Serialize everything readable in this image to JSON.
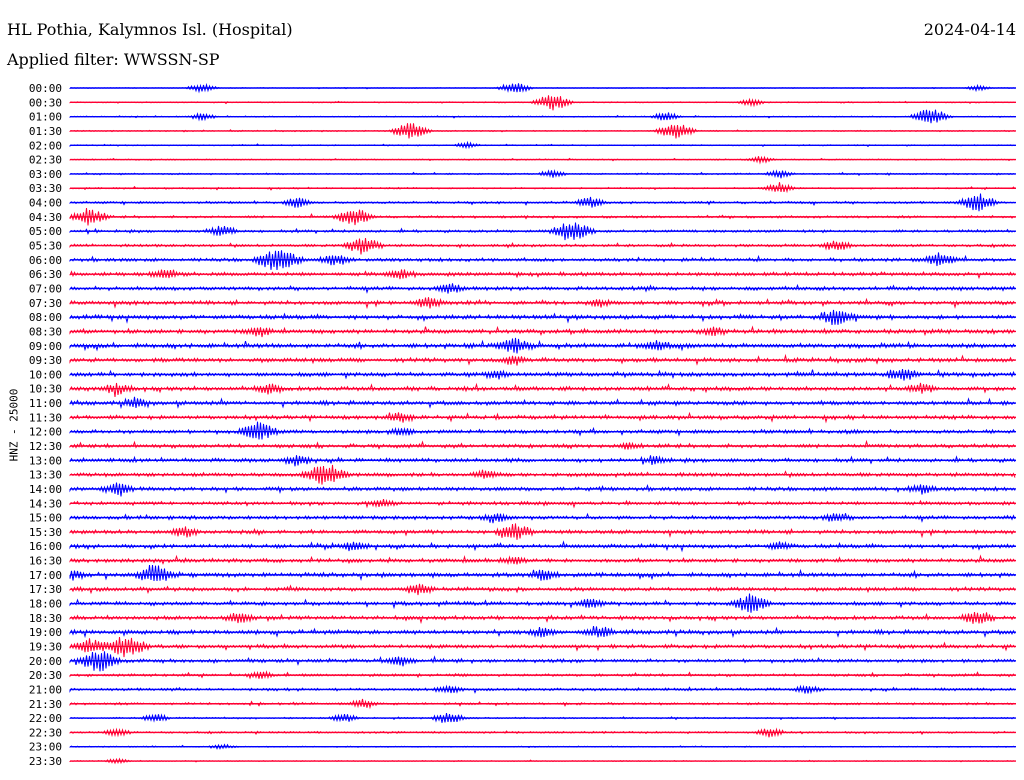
{
  "header": {
    "station": "HL Pothia, Kalymnos Isl. (Hospital)",
    "date": "2024-04-14",
    "filter": "Applied filter: WWSSN-SP"
  },
  "axis": {
    "ylabel": "HNZ - 25000"
  },
  "colors": {
    "even": "#0000ff",
    "odd": "#ff0033"
  },
  "chart_data": {
    "type": "line",
    "title": "",
    "ylabel": "HNZ - 25000",
    "rows": [
      {
        "label": "00:00",
        "events": [
          [
            0.14,
            0.5
          ],
          [
            0.47,
            0.7
          ],
          [
            0.96,
            0.3
          ]
        ],
        "noise": 0.1
      },
      {
        "label": "00:30",
        "events": [
          [
            0.51,
            1.0
          ],
          [
            0.72,
            0.4
          ]
        ],
        "noise": 0.15
      },
      {
        "label": "01:00",
        "events": [
          [
            0.14,
            0.4
          ],
          [
            0.63,
            0.5
          ],
          [
            0.91,
            1.0
          ]
        ],
        "noise": 0.15
      },
      {
        "label": "01:30",
        "events": [
          [
            0.36,
            1.0
          ],
          [
            0.64,
            1.0
          ]
        ],
        "noise": 0.15
      },
      {
        "label": "02:00",
        "events": [
          [
            0.42,
            0.3
          ]
        ],
        "noise": 0.15
      },
      {
        "label": "02:30",
        "events": [
          [
            0.73,
            0.4
          ]
        ],
        "noise": 0.15
      },
      {
        "label": "03:00",
        "events": [
          [
            0.51,
            0.4
          ],
          [
            0.75,
            0.4
          ]
        ],
        "noise": 0.2
      },
      {
        "label": "03:30",
        "events": [
          [
            0.75,
            0.6
          ]
        ],
        "noise": 0.2
      },
      {
        "label": "04:00",
        "events": [
          [
            0.24,
            0.5
          ],
          [
            0.55,
            0.6
          ],
          [
            0.96,
            1.0
          ]
        ],
        "noise": 0.3
      },
      {
        "label": "04:30",
        "events": [
          [
            0.02,
            1.0
          ],
          [
            0.3,
            1.0
          ]
        ],
        "noise": 0.3
      },
      {
        "label": "05:00",
        "events": [
          [
            0.16,
            0.6
          ],
          [
            0.53,
            1.2
          ]
        ],
        "noise": 0.35
      },
      {
        "label": "05:30",
        "events": [
          [
            0.31,
            1.0
          ],
          [
            0.81,
            0.6
          ]
        ],
        "noise": 0.35
      },
      {
        "label": "06:00",
        "events": [
          [
            0.22,
            1.4
          ],
          [
            0.28,
            0.6
          ],
          [
            0.92,
            0.7
          ]
        ],
        "noise": 0.45
      },
      {
        "label": "06:30",
        "events": [
          [
            0.1,
            0.6
          ],
          [
            0.35,
            0.5
          ]
        ],
        "noise": 0.5
      },
      {
        "label": "07:00",
        "events": [
          [
            0.4,
            0.5
          ]
        ],
        "noise": 0.5
      },
      {
        "label": "07:30",
        "events": [
          [
            0.38,
            0.6
          ],
          [
            0.56,
            0.4
          ]
        ],
        "noise": 0.5
      },
      {
        "label": "08:00",
        "events": [
          [
            0.81,
            0.9
          ]
        ],
        "noise": 0.55
      },
      {
        "label": "08:30",
        "events": [
          [
            0.2,
            0.5
          ],
          [
            0.68,
            0.4
          ]
        ],
        "noise": 0.55
      },
      {
        "label": "09:00",
        "events": [
          [
            0.47,
            0.8
          ],
          [
            0.62,
            0.6
          ]
        ],
        "noise": 0.6
      },
      {
        "label": "09:30",
        "events": [
          [
            0.47,
            0.5
          ]
        ],
        "noise": 0.55
      },
      {
        "label": "10:00",
        "events": [
          [
            0.45,
            0.4
          ],
          [
            0.88,
            0.7
          ]
        ],
        "noise": 0.55
      },
      {
        "label": "10:30",
        "events": [
          [
            0.05,
            0.6
          ],
          [
            0.21,
            0.5
          ],
          [
            0.9,
            0.5
          ]
        ],
        "noise": 0.55
      },
      {
        "label": "11:00",
        "events": [
          [
            0.07,
            0.5
          ]
        ],
        "noise": 0.55
      },
      {
        "label": "11:30",
        "events": [
          [
            0.35,
            0.5
          ]
        ],
        "noise": 0.5
      },
      {
        "label": "12:00",
        "events": [
          [
            0.2,
            1.0
          ],
          [
            0.35,
            0.4
          ]
        ],
        "noise": 0.5
      },
      {
        "label": "12:30",
        "events": [
          [
            0.59,
            0.4
          ]
        ],
        "noise": 0.5
      },
      {
        "label": "13:00",
        "events": [
          [
            0.24,
            0.6
          ],
          [
            0.62,
            0.4
          ]
        ],
        "noise": 0.5
      },
      {
        "label": "13:30",
        "events": [
          [
            0.27,
            1.3
          ],
          [
            0.44,
            0.5
          ]
        ],
        "noise": 0.5
      },
      {
        "label": "14:00",
        "events": [
          [
            0.05,
            0.6
          ],
          [
            0.9,
            0.5
          ]
        ],
        "noise": 0.5
      },
      {
        "label": "14:30",
        "events": [
          [
            0.33,
            0.4
          ]
        ],
        "noise": 0.45
      },
      {
        "label": "15:00",
        "events": [
          [
            0.45,
            0.5
          ],
          [
            0.81,
            0.5
          ]
        ],
        "noise": 0.5
      },
      {
        "label": "15:30",
        "events": [
          [
            0.12,
            0.6
          ],
          [
            0.47,
            0.9
          ]
        ],
        "noise": 0.5
      },
      {
        "label": "16:00",
        "events": [
          [
            0.3,
            0.5
          ],
          [
            0.75,
            0.4
          ]
        ],
        "noise": 0.5
      },
      {
        "label": "16:30",
        "events": [
          [
            0.47,
            0.4
          ]
        ],
        "noise": 0.5
      },
      {
        "label": "17:00",
        "events": [
          [
            0.0,
            0.6
          ],
          [
            0.09,
            1.0
          ],
          [
            0.5,
            0.5
          ]
        ],
        "noise": 0.55
      },
      {
        "label": "17:30",
        "events": [
          [
            0.37,
            0.6
          ]
        ],
        "noise": 0.5
      },
      {
        "label": "18:00",
        "events": [
          [
            0.55,
            0.5
          ],
          [
            0.72,
            1.0
          ]
        ],
        "noise": 0.5
      },
      {
        "label": "18:30",
        "events": [
          [
            0.18,
            0.5
          ],
          [
            0.96,
            0.7
          ]
        ],
        "noise": 0.5
      },
      {
        "label": "19:00",
        "events": [
          [
            0.5,
            0.5
          ],
          [
            0.56,
            0.6
          ]
        ],
        "noise": 0.55
      },
      {
        "label": "19:30",
        "events": [
          [
            0.02,
            0.8
          ],
          [
            0.06,
            1.3
          ]
        ],
        "noise": 0.5
      },
      {
        "label": "20:00",
        "events": [
          [
            0.03,
            1.2
          ],
          [
            0.35,
            0.5
          ]
        ],
        "noise": 0.45
      },
      {
        "label": "20:30",
        "events": [
          [
            0.2,
            0.4
          ]
        ],
        "noise": 0.35
      },
      {
        "label": "21:00",
        "events": [
          [
            0.4,
            0.5
          ],
          [
            0.78,
            0.4
          ]
        ],
        "noise": 0.35
      },
      {
        "label": "21:30",
        "events": [
          [
            0.31,
            0.5
          ]
        ],
        "noise": 0.3
      },
      {
        "label": "22:00",
        "events": [
          [
            0.09,
            0.5
          ],
          [
            0.29,
            0.5
          ],
          [
            0.4,
            0.7
          ]
        ],
        "noise": 0.2
      },
      {
        "label": "22:30",
        "events": [
          [
            0.05,
            0.4
          ],
          [
            0.74,
            0.5
          ]
        ],
        "noise": 0.25
      },
      {
        "label": "23:00",
        "events": [
          [
            0.16,
            0.3
          ]
        ],
        "noise": 0.15
      },
      {
        "label": "23:30",
        "events": [
          [
            0.05,
            0.3
          ]
        ],
        "noise": 0.12
      }
    ]
  }
}
